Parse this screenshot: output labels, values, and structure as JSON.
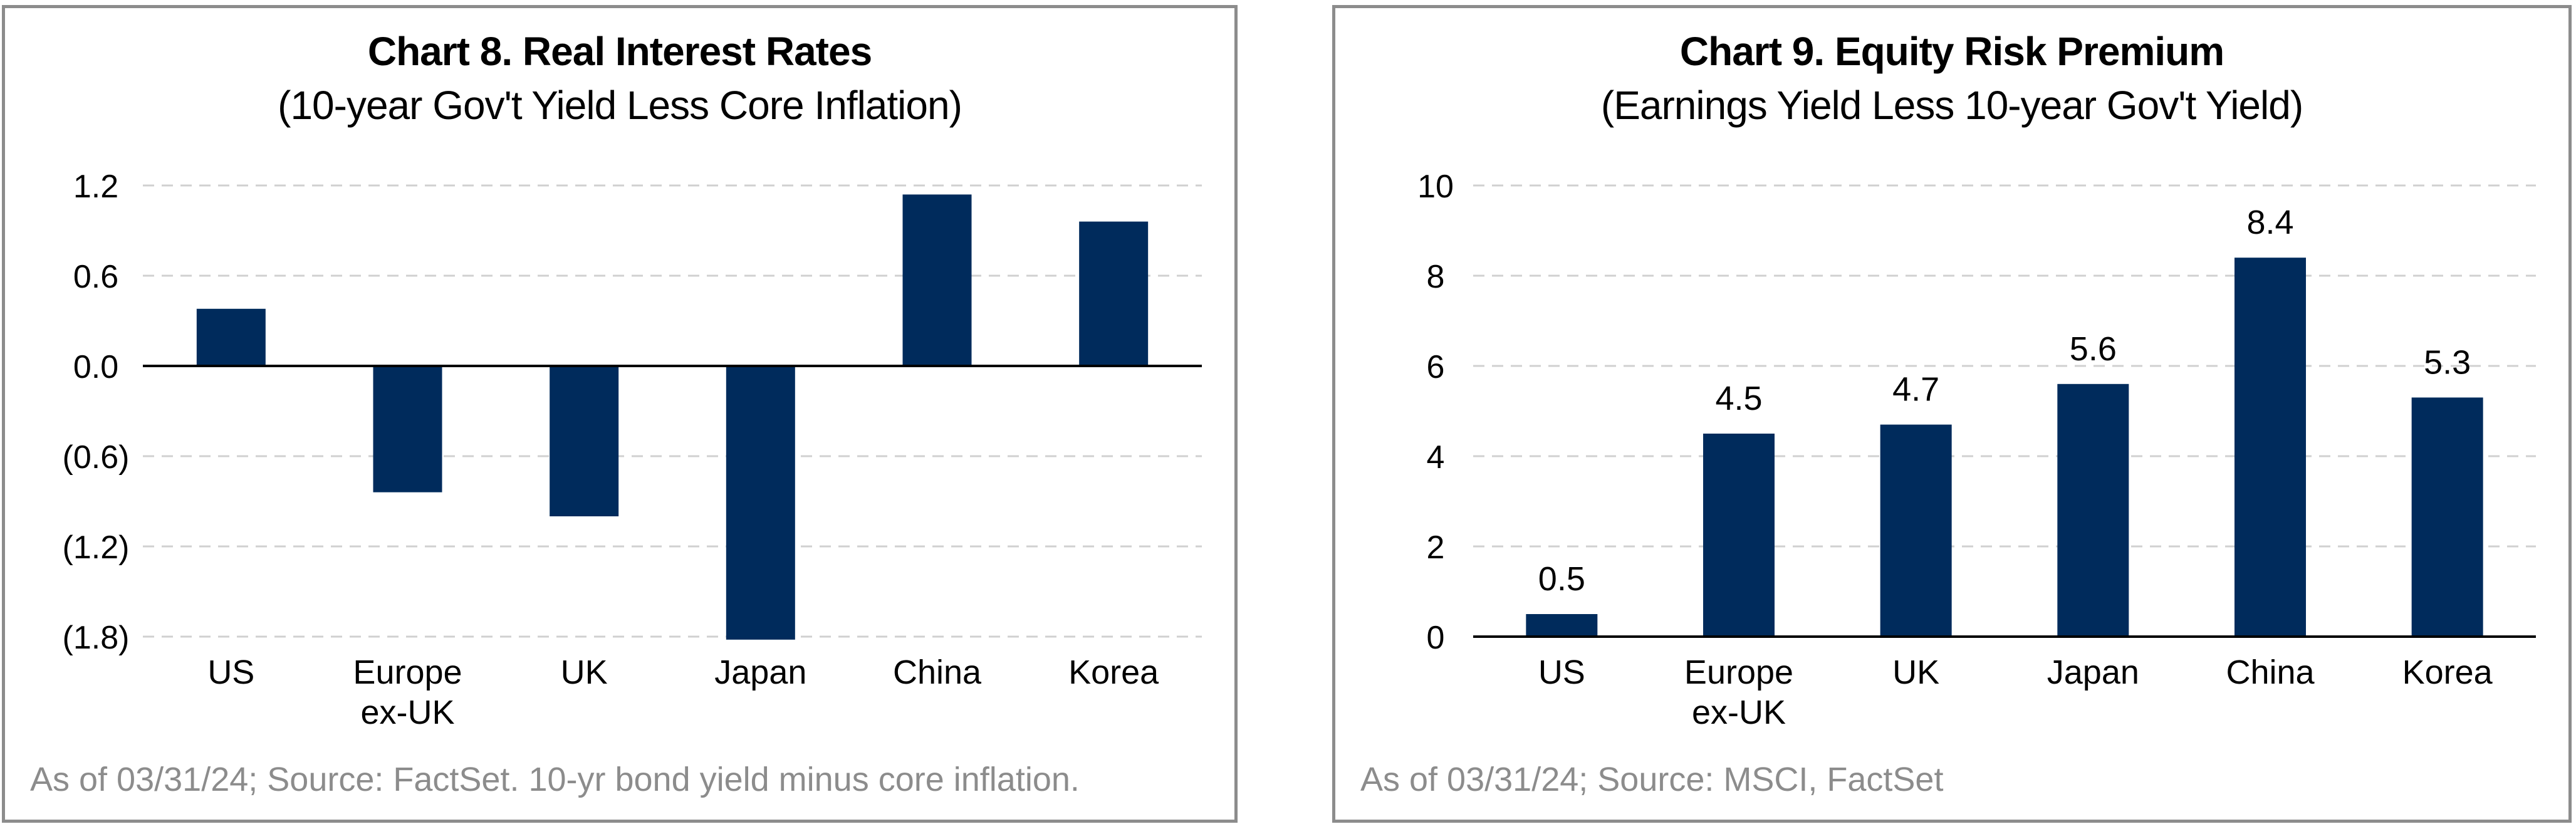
{
  "charts": [
    {
      "title": "Chart 8. Real Interest Rates",
      "subtitle": "(10-year Gov't Yield Less Core Inflation)",
      "note": "As of 03/31/24; Source: FactSet. 10-yr bond yield minus core inflation."
    },
    {
      "title": "Chart 9. Equity Risk Premium",
      "subtitle": "(Earnings Yield Less 10-year Gov't Yield)",
      "note": "As of 03/31/24; Source: MSCI, FactSet"
    }
  ],
  "colors": {
    "bar": "#002b5c",
    "grid": "#d0d0d0",
    "axis": "#000000",
    "border": "#8c8c8c",
    "note": "#8c8c8c"
  },
  "chart_data": [
    {
      "type": "bar",
      "title": "Chart 8. Real Interest Rates",
      "subtitle": "(10-year Gov't Yield Less Core Inflation)",
      "categories": [
        [
          "US"
        ],
        [
          "Europe",
          "ex-UK"
        ],
        [
          "UK"
        ],
        [
          "Japan"
        ],
        [
          "China"
        ],
        [
          "Korea"
        ]
      ],
      "values": [
        0.38,
        -0.84,
        -1.0,
        -1.82,
        1.14,
        0.96
      ],
      "ylim": [
        -1.8,
        1.2
      ],
      "yticks": [
        1.2,
        0.6,
        0.0,
        -0.6,
        -1.2,
        -1.8
      ],
      "ytick_labels": [
        "1.2",
        "0.6",
        "0.0",
        "(0.6)",
        "(1.2)",
        "(1.8)"
      ],
      "grid": true,
      "data_labels": false
    },
    {
      "type": "bar",
      "title": "Chart 9. Equity Risk Premium",
      "subtitle": "(Earnings Yield Less 10-year Gov't Yield)",
      "categories": [
        [
          "US"
        ],
        [
          "Europe",
          "ex-UK"
        ],
        [
          "UK"
        ],
        [
          "Japan"
        ],
        [
          "China"
        ],
        [
          "Korea"
        ]
      ],
      "values": [
        0.5,
        4.5,
        4.7,
        5.6,
        8.4,
        5.3
      ],
      "value_labels": [
        "0.5",
        "4.5",
        "4.7",
        "5.6",
        "8.4",
        "5.3"
      ],
      "ylim": [
        0,
        10
      ],
      "yticks": [
        10,
        8,
        6,
        4,
        2,
        0
      ],
      "ytick_labels": [
        "10",
        "8",
        "6",
        "4",
        "2",
        "0"
      ],
      "grid": true,
      "data_labels": true
    }
  ]
}
